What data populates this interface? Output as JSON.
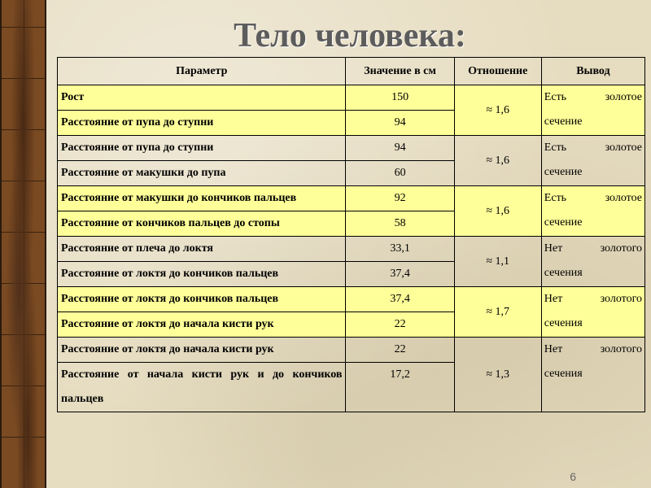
{
  "title": "Тело человека:",
  "headers": [
    "Параметр",
    "Значение в см",
    "Отношение",
    "Вывод"
  ],
  "groups": [
    {
      "highlight": true,
      "ratio": "≈ 1,6",
      "conclusion": "Есть золотое сечение",
      "rows": [
        {
          "param": "Рост",
          "value": "150"
        },
        {
          "param": "Расстояние от пупа до ступни",
          "value": "94"
        }
      ]
    },
    {
      "highlight": false,
      "ratio": "≈ 1,6",
      "conclusion": "Есть золотое сечение",
      "rows": [
        {
          "param": "Расстояние от пупа до ступни",
          "value": "94"
        },
        {
          "param": "Расстояние от макушки до пупа",
          "value": "60"
        }
      ]
    },
    {
      "highlight": true,
      "ratio": "≈ 1,6",
      "conclusion": "Есть золотое сечение",
      "rows": [
        {
          "param": "Расстояние от макушки до кончиков пальцев",
          "value": "92"
        },
        {
          "param": "Расстояние от кончиков пальцев до стопы",
          "value": "58"
        }
      ]
    },
    {
      "highlight": false,
      "ratio": "≈ 1,1",
      "conclusion": "Нет золотого сечения",
      "rows": [
        {
          "param": "Расстояние от плеча до локтя",
          "value": "33,1"
        },
        {
          "param": "Расстояние от локтя до кончиков пальцев",
          "value": "37,4"
        }
      ]
    },
    {
      "highlight": true,
      "ratio": "≈ 1,7",
      "conclusion": "Нет золотого сечения",
      "rows": [
        {
          "param": "Расстояние от локтя до кончиков пальцев",
          "value": "37,4"
        },
        {
          "param": "Расстояние от локтя до начала кисти рук",
          "value": "22"
        }
      ]
    },
    {
      "highlight": false,
      "ratio": "≈ 1,3",
      "conclusion": "Нет золотого сечения",
      "rows": [
        {
          "param": "Расстояние от локтя до начала кисти рук",
          "value": "22"
        },
        {
          "param": "Расстояние от начала кисти рук и до кончиков пальцев",
          "value": "17,2"
        }
      ]
    }
  ],
  "highlight_color": "#ffff99",
  "slide_number": "6"
}
